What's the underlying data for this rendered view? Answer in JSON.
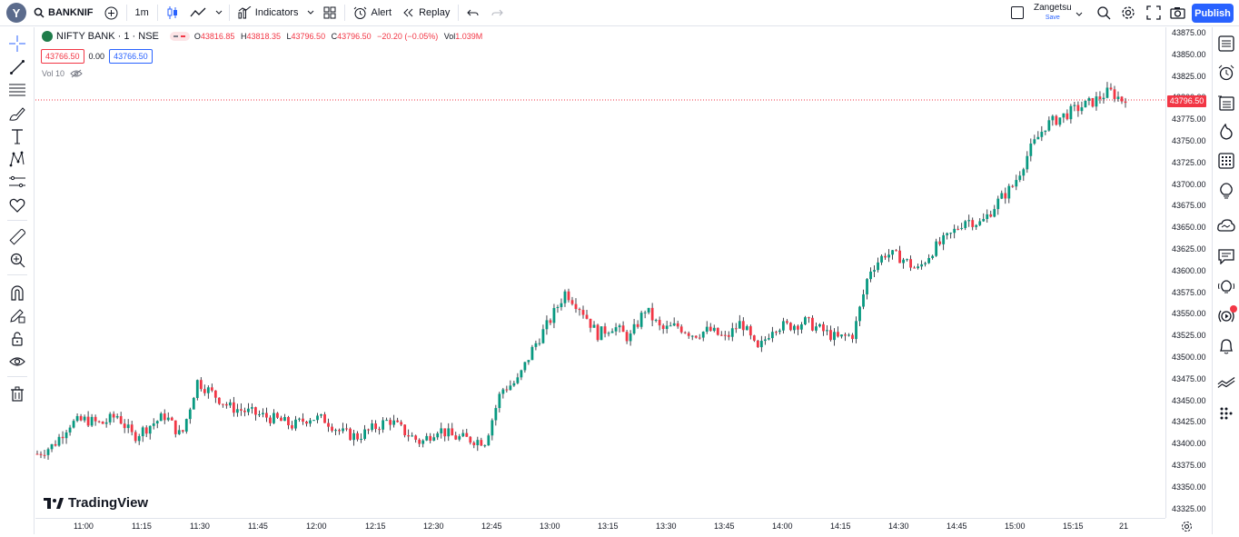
{
  "header": {
    "avatar_letter": "Y",
    "symbol": "BANKNIF",
    "interval": "1m",
    "indicators_label": "Indicators",
    "alert_label": "Alert",
    "replay_label": "Replay",
    "layout_name": "Zangetsu",
    "layout_status": "Save",
    "publish_label": "Publish"
  },
  "legend": {
    "symbol_title": "NIFTY BANK · 1 · NSE",
    "o_label": "O",
    "o_value": "43816.85",
    "h_label": "H",
    "h_value": "43818.35",
    "l_label": "L",
    "l_value": "43796.50",
    "c_label": "C",
    "c_value": "43796.50",
    "change": "−20.20 (−0.05%)",
    "vol_label": "Vol",
    "vol_value": "1.039M",
    "bid": "43766.50",
    "spread": "0.00",
    "ask": "43766.50",
    "volume_study": "Vol 10"
  },
  "price_axis": {
    "labels": [
      "43875.00",
      "43850.00",
      "43825.00",
      "43800.00",
      "43775.00",
      "43750.00",
      "43725.00",
      "43700.00",
      "43675.00",
      "43650.00",
      "43625.00",
      "43600.00",
      "43575.00",
      "43550.00",
      "43525.00",
      "43500.00",
      "43475.00",
      "43450.00",
      "43425.00",
      "43400.00",
      "43375.00",
      "43350.00",
      "43325.00"
    ],
    "last_price": "43796.50"
  },
  "time_axis": {
    "labels": [
      "11:00",
      "11:15",
      "11:30",
      "11:45",
      "12:00",
      "12:15",
      "12:30",
      "12:45",
      "13:00",
      "13:15",
      "13:30",
      "13:45",
      "14:00",
      "14:15",
      "14:30",
      "14:45",
      "15:00",
      "15:15",
      "21"
    ]
  },
  "brand": "TradingView",
  "colors": {
    "up": "#089981",
    "down": "#f23645",
    "accent": "#2962ff"
  },
  "chart_data": {
    "type": "candlestick",
    "y_range": [
      43310,
      43885
    ],
    "x": [
      "11:00",
      "11:15",
      "11:30",
      "11:45",
      "12:00",
      "12:15",
      "12:30",
      "12:45",
      "13:00",
      "13:15",
      "13:30",
      "13:45",
      "14:00",
      "14:15",
      "14:30",
      "14:45",
      "15:00",
      "15:15"
    ],
    "close_path": [
      43385,
      43395,
      43420,
      43425,
      43420,
      43430,
      43405,
      43418,
      43430,
      43405,
      43470,
      43455,
      43440,
      43435,
      43430,
      43425,
      43418,
      43428,
      43425,
      43410,
      43405,
      43415,
      43425,
      43410,
      43398,
      43415,
      43405,
      43402,
      43400,
      43460,
      43470,
      43510,
      43540,
      43575,
      43555,
      43525,
      43535,
      43520,
      43555,
      43530,
      43535,
      43525,
      43530,
      43520,
      43540,
      43505,
      43535,
      43535,
      43540,
      43530,
      43520,
      43525,
      43600,
      43620,
      43615,
      43600,
      43625,
      43640,
      43660,
      43655,
      43680,
      43700,
      43740,
      43770,
      43780,
      43790,
      43798,
      43810,
      43797
    ],
    "last_close": 43796.5
  }
}
